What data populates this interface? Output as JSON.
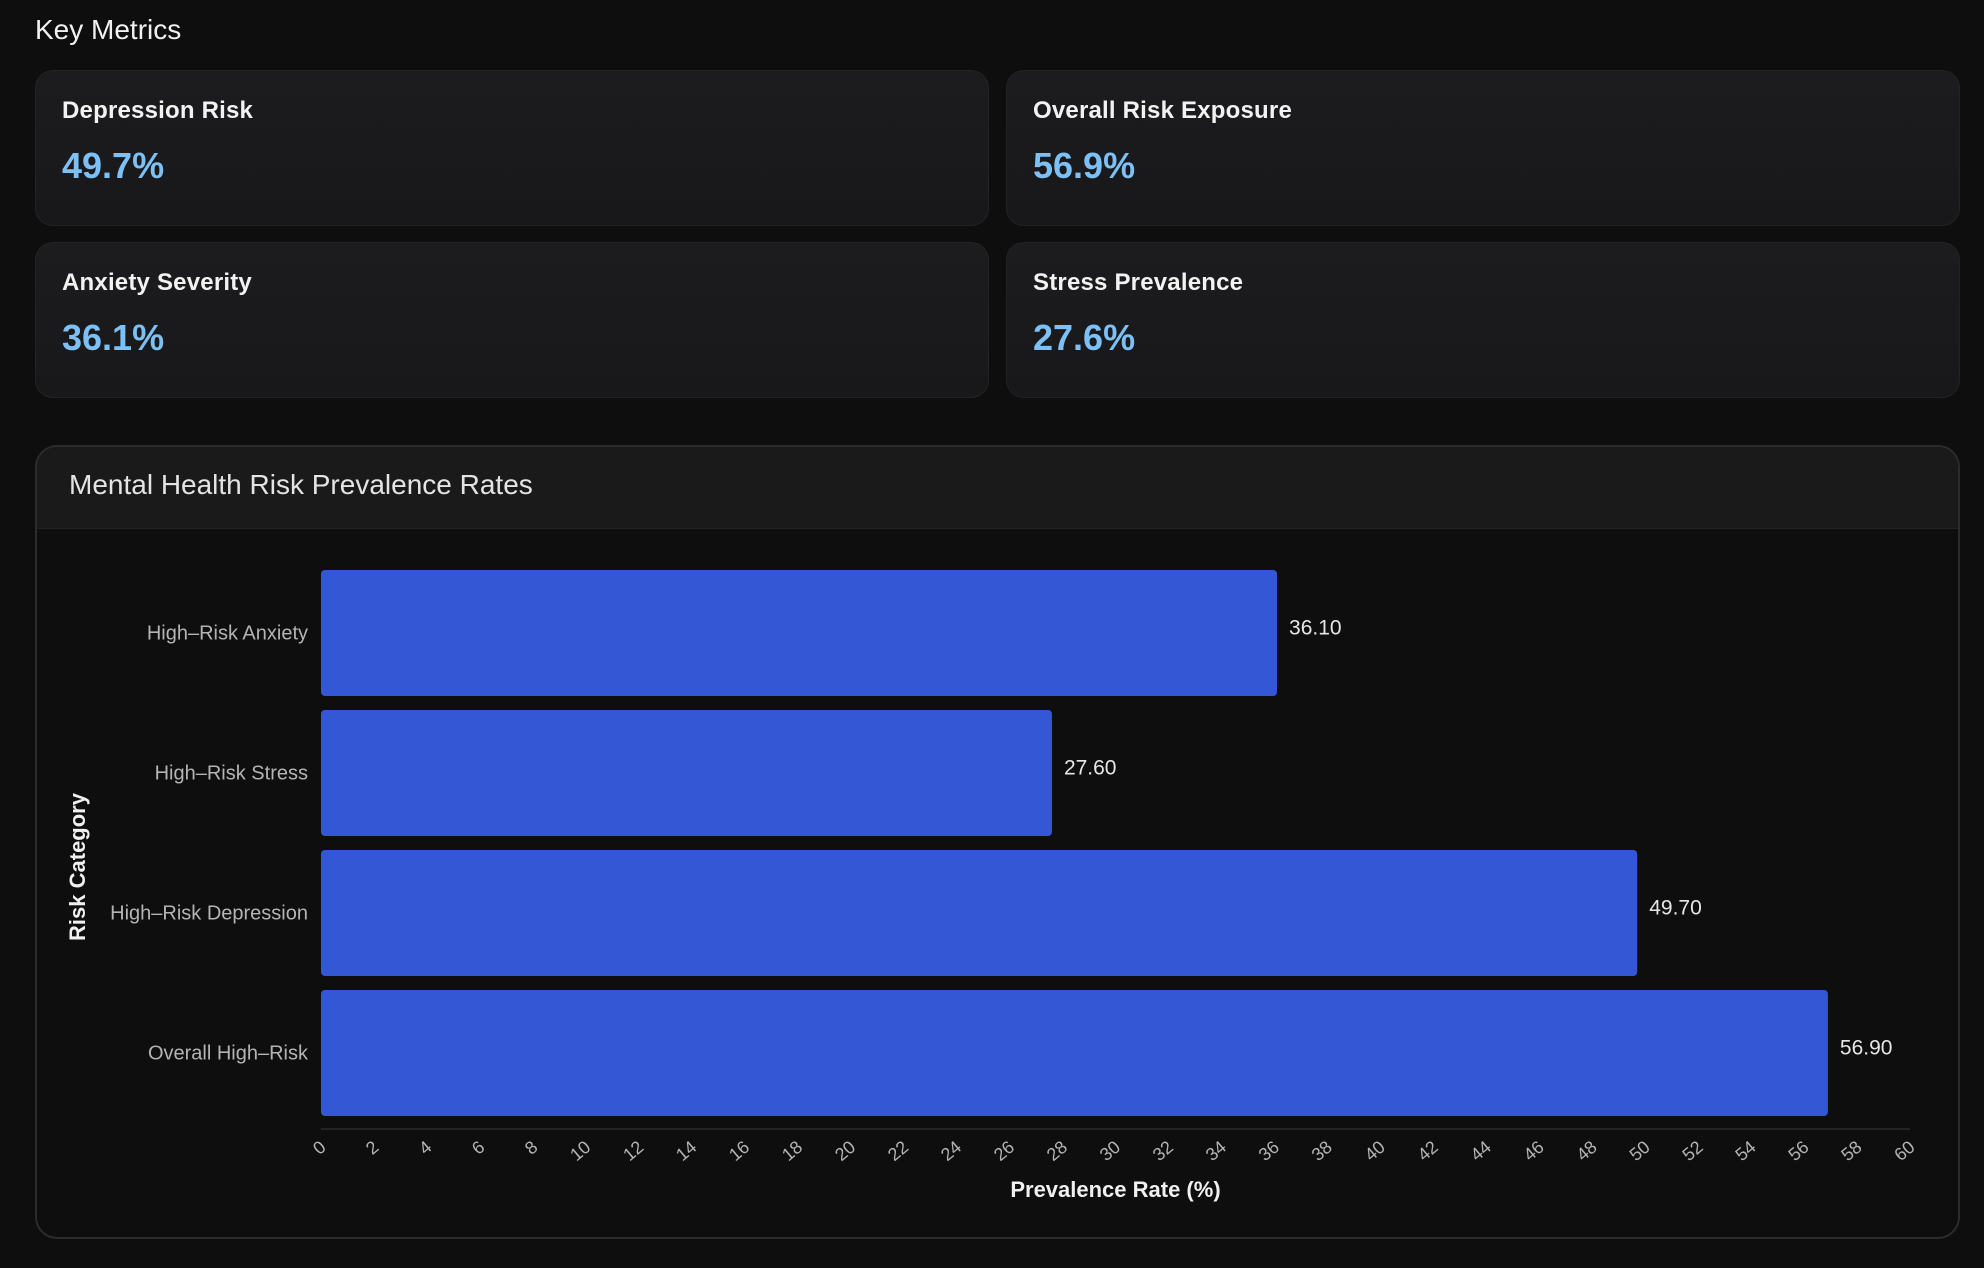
{
  "metrics_section": {
    "title": "Key Metrics",
    "cards": [
      {
        "label": "Depression Risk",
        "value": "49.7%"
      },
      {
        "label": "Overall Risk Exposure",
        "value": "56.9%"
      },
      {
        "label": "Anxiety Severity",
        "value": "36.1%"
      },
      {
        "label": "Stress Prevalence",
        "value": "27.6%"
      }
    ]
  },
  "colors": {
    "bar": "#3457d5",
    "metric_value": "#7cc0f5",
    "background": "#0e0e0f"
  },
  "chart_data": {
    "type": "bar",
    "orientation": "horizontal",
    "title": "Mental Health Risk Prevalence Rates",
    "xlabel": "Prevalence Rate (%)",
    "ylabel": "Risk Category",
    "categories": [
      "High–Risk Anxiety",
      "High–Risk Stress",
      "High–Risk Depression",
      "Overall High–Risk"
    ],
    "values": [
      36.1,
      27.6,
      49.7,
      56.9
    ],
    "value_labels": [
      "36.10",
      "27.60",
      "49.70",
      "56.90"
    ],
    "xlim": [
      0,
      60
    ],
    "xticks": [
      0,
      2,
      4,
      6,
      8,
      10,
      12,
      14,
      16,
      18,
      20,
      22,
      24,
      26,
      28,
      30,
      32,
      34,
      36,
      38,
      40,
      42,
      44,
      46,
      48,
      50,
      52,
      54,
      56,
      58,
      60
    ],
    "grid": false,
    "legend": "none"
  }
}
